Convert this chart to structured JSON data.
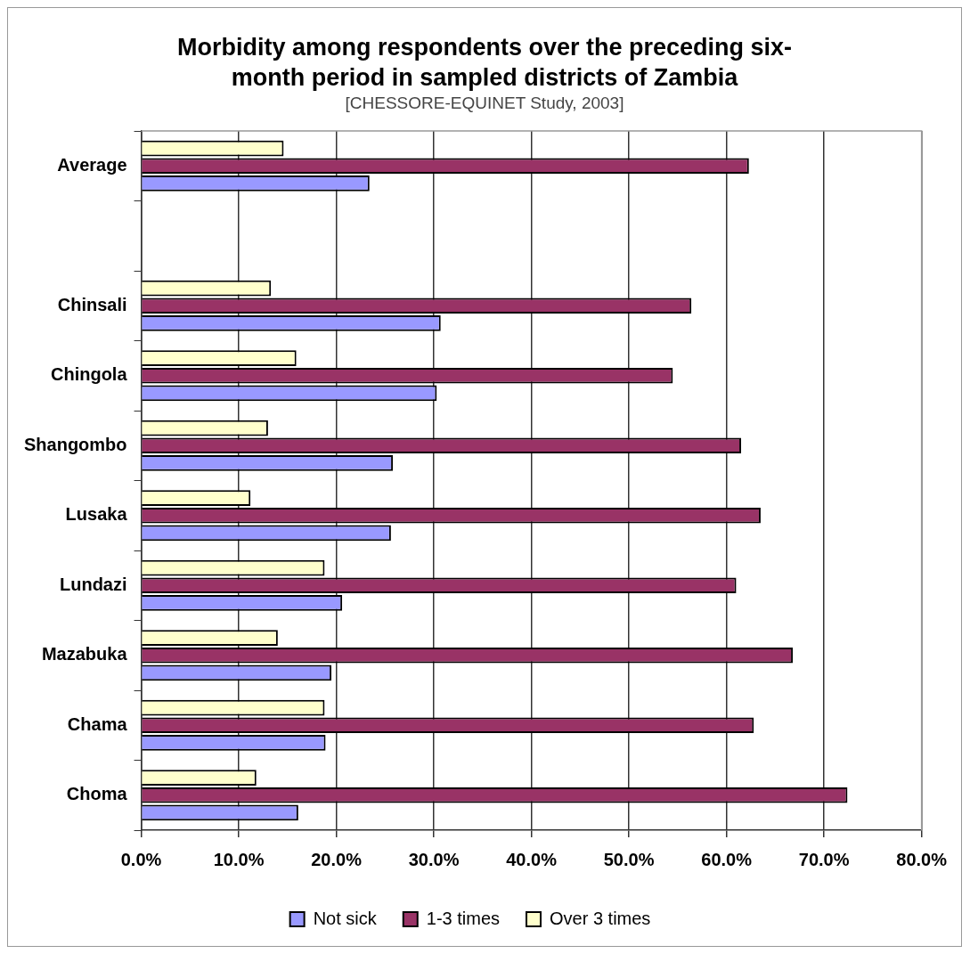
{
  "chart_data": {
    "type": "bar",
    "orientation": "horizontal",
    "title": "Morbidity among respondents over the preceding six-month period in sampled districts of Zambia",
    "subtitle": "[CHESSORE-EQUINET Study, 2003]",
    "categories": [
      "Average",
      null,
      "Chinsali",
      "Chingola",
      "Shangombo",
      "Lusaka",
      "Lundazi",
      "Mazabuka",
      "Chama",
      "Choma"
    ],
    "series": [
      {
        "name": "Not sick",
        "color": "#9999ff",
        "values": [
          23.4,
          null,
          30.7,
          30.3,
          25.8,
          25.6,
          20.6,
          19.5,
          18.9,
          16.1
        ]
      },
      {
        "name": "1-3 times",
        "color": "#993366",
        "values": [
          62.3,
          null,
          56.4,
          54.5,
          61.5,
          63.5,
          61.0,
          66.8,
          62.8,
          72.4
        ]
      },
      {
        "name": "Over 3 times",
        "color": "#ffffcc",
        "values": [
          14.6,
          null,
          13.3,
          15.9,
          13.0,
          11.2,
          18.8,
          14.0,
          18.8,
          11.8
        ]
      }
    ],
    "xlim": [
      0,
      80
    ],
    "xticks": [
      {
        "value": 0,
        "label": "0.0%"
      },
      {
        "value": 10,
        "label": "10.0%"
      },
      {
        "value": 20,
        "label": "20.0%"
      },
      {
        "value": 30,
        "label": "30.0%"
      },
      {
        "value": 40,
        "label": "40.0%"
      },
      {
        "value": 50,
        "label": "50.0%"
      },
      {
        "value": 60,
        "label": "60.0%"
      },
      {
        "value": 70,
        "label": "70.0%"
      },
      {
        "value": 80,
        "label": "80.0%"
      }
    ],
    "grid": "x",
    "legend": "bottom"
  }
}
